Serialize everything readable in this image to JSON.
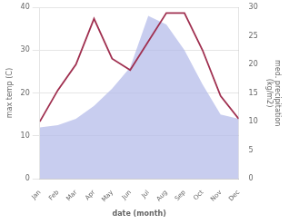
{
  "chart_data": {
    "type": "line",
    "categories": [
      "Jan",
      "Feb",
      "Mar",
      "Apr",
      "May",
      "Jun",
      "Jul",
      "Aug",
      "Sep",
      "Oct",
      "Nov",
      "Dec"
    ],
    "xlabel": "date (month)",
    "ylabel": "max temp (C)",
    "y2label": "med. precipitation\n(kg/m2)",
    "series": [
      {
        "type": "area",
        "color": "#b0b8e8",
        "values": [
          12.0,
          12.5,
          14.0,
          17.0,
          21.0,
          26.0,
          38.0,
          36.0,
          30.0,
          22.0,
          15.0,
          14.0
        ]
      },
      {
        "type": "line",
        "color": "#a03050",
        "axis": "y2",
        "values": [
          10.0,
          15.5,
          20.0,
          28.0,
          21.0,
          19.0,
          24.0,
          29.0,
          29.0,
          22.5,
          14.5,
          10.5
        ]
      }
    ],
    "ylim": [
      0,
      40
    ],
    "yticks": [
      0,
      10,
      20,
      30,
      40
    ],
    "y2lim": [
      0,
      30
    ],
    "y2ticks": [
      0,
      5,
      10,
      15,
      20,
      25,
      30
    ],
    "grid": true
  }
}
